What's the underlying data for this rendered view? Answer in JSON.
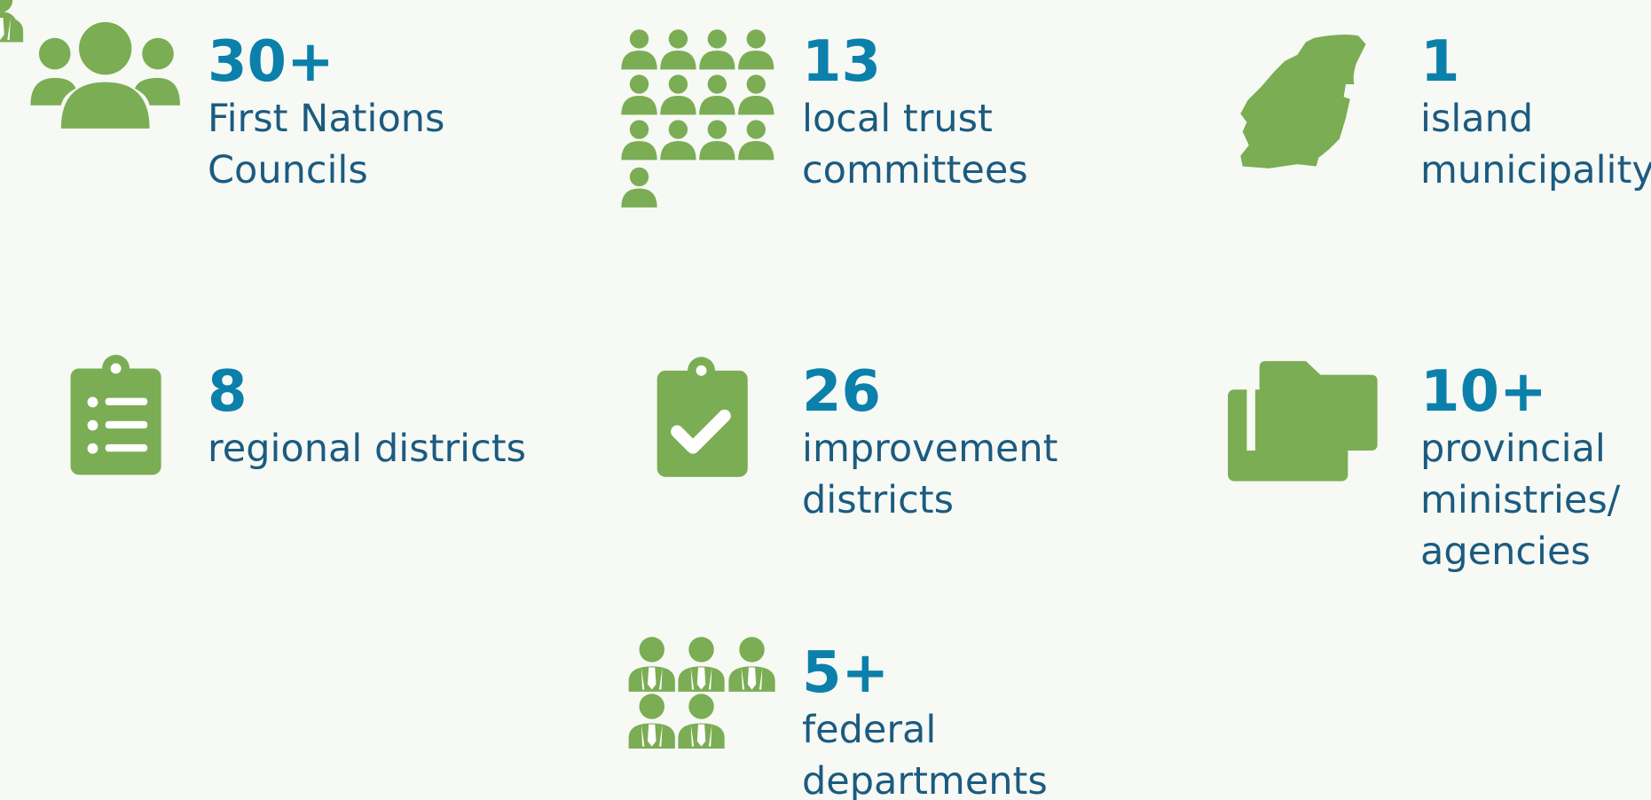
{
  "items": [
    {
      "number": "30+",
      "label": [
        "First Nations",
        "Councils"
      ]
    },
    {
      "number": "13",
      "label": [
        "local trust",
        "committees"
      ]
    },
    {
      "number": "1",
      "label": [
        "island",
        "municipality"
      ]
    },
    {
      "number": "8",
      "label": [
        "regional districts"
      ]
    },
    {
      "number": "26",
      "label": [
        "improvement",
        "districts"
      ]
    },
    {
      "number": "10+",
      "label": [
        "provincial",
        "ministries/",
        "agencies"
      ]
    },
    {
      "number": "5+",
      "label": [
        "federal",
        "departments"
      ]
    }
  ]
}
